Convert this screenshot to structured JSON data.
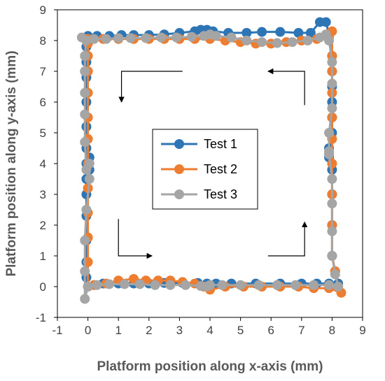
{
  "chart_data": {
    "type": "scatter",
    "title": "",
    "xlabel": "Platform position along x-axis (mm)",
    "ylabel": "Platform position along y-axis (mm)",
    "xlim": [
      -1,
      9
    ],
    "ylim": [
      -1,
      9
    ],
    "x_ticks": [
      "-1",
      "0",
      "1",
      "2",
      "3",
      "4",
      "5",
      "6",
      "7",
      "8",
      "9"
    ],
    "y_ticks": [
      "-1",
      "0",
      "1",
      "2",
      "3",
      "4",
      "5",
      "6",
      "7",
      "8",
      "9"
    ],
    "grid": false,
    "legend_position": "center",
    "series": [
      {
        "name": "Test 1",
        "color": "#2E75B6",
        "x": [
          0.0,
          0.3,
          0.7,
          1.1,
          1.5,
          2.0,
          2.5,
          3.0,
          3.5,
          3.7,
          3.9,
          4.1,
          4.6,
          5.2,
          5.7,
          6.3,
          6.9,
          7.3,
          7.6,
          7.8,
          7.9,
          8.0,
          8.0,
          8.0,
          8.0,
          8.0,
          8.0,
          7.9,
          7.9,
          7.9,
          8.0,
          8.0,
          8.0,
          8.0,
          8.1,
          8.2,
          7.9,
          7.5,
          7.0,
          6.3,
          5.5,
          4.7,
          4.2,
          3.9,
          3.6,
          3.1,
          2.5,
          2.0,
          1.5,
          1.0,
          0.5,
          0.2,
          0.0,
          -0.05,
          -0.05,
          -0.05,
          -0.05,
          -0.05,
          -0.05,
          -0.05,
          0.05,
          0.05,
          -0.05,
          -0.05,
          -0.05,
          -0.05,
          -0.05,
          -0.05,
          -0.05
        ],
        "y": [
          8.15,
          8.15,
          8.15,
          8.18,
          8.18,
          8.18,
          8.2,
          8.25,
          8.3,
          8.35,
          8.35,
          8.3,
          8.25,
          8.25,
          8.28,
          8.28,
          8.25,
          8.25,
          8.6,
          8.6,
          8.2,
          7.5,
          7.0,
          6.5,
          6.0,
          5.5,
          5.0,
          4.5,
          4.3,
          4.2,
          3.8,
          3.0,
          2.0,
          1.0,
          0.5,
          0.1,
          0.1,
          0.1,
          0.1,
          0.1,
          0.1,
          0.1,
          0.1,
          0.1,
          0.12,
          0.12,
          0.12,
          0.1,
          0.1,
          0.1,
          0.1,
          0.05,
          0.0,
          0.3,
          0.8,
          1.5,
          2.3,
          3.0,
          3.5,
          4.0,
          4.2,
          3.8,
          4.5,
          5.2,
          6.0,
          6.8,
          7.3,
          7.8,
          8.1
        ]
      },
      {
        "name": "Test 2",
        "color": "#ED7D31",
        "x": [
          0.0,
          0.5,
          1.0,
          1.5,
          2.0,
          2.5,
          3.0,
          3.5,
          4.0,
          4.5,
          5.0,
          5.5,
          6.0,
          6.5,
          7.0,
          7.5,
          7.9,
          8.0,
          8.0,
          8.0,
          8.0,
          8.0,
          8.0,
          8.0,
          8.0,
          8.0,
          8.0,
          8.1,
          8.2,
          8.3,
          7.9,
          7.4,
          6.9,
          6.3,
          5.7,
          5.1,
          4.5,
          4.0,
          3.8,
          3.5,
          3.1,
          2.7,
          2.3,
          1.9,
          1.5,
          1.0,
          0.6,
          0.2,
          0.0,
          0.0,
          0.0,
          0.0,
          0.0,
          0.0,
          0.0,
          0.0,
          0.0,
          0.0,
          0.0,
          0.0
        ],
        "y": [
          8.05,
          8.05,
          8.05,
          8.05,
          8.05,
          8.05,
          8.05,
          8.05,
          8.05,
          8.0,
          7.95,
          7.9,
          7.9,
          7.95,
          8.0,
          8.05,
          8.1,
          8.3,
          7.5,
          7.0,
          6.3,
          5.5,
          4.8,
          4.0,
          3.0,
          2.0,
          1.0,
          0.5,
          0.0,
          -0.2,
          -0.05,
          -0.05,
          0.0,
          0.0,
          0.0,
          0.0,
          0.0,
          -0.1,
          0.0,
          0.1,
          0.15,
          0.2,
          0.2,
          0.2,
          0.25,
          0.2,
          0.1,
          0.05,
          0.0,
          0.8,
          1.6,
          2.4,
          3.2,
          4.0,
          4.8,
          5.5,
          6.3,
          7.0,
          7.5,
          7.9
        ]
      },
      {
        "name": "Test 3",
        "color": "#A5A5A5",
        "x": [
          -0.2,
          0.2,
          0.6,
          1.0,
          1.4,
          1.9,
          2.4,
          2.9,
          3.4,
          3.8,
          4.0,
          4.2,
          4.7,
          5.2,
          5.7,
          6.2,
          6.7,
          7.2,
          7.6,
          7.8,
          7.9,
          8.0,
          8.0,
          8.0,
          7.9,
          7.9,
          7.9,
          8.0,
          8.0,
          8.0,
          8.0,
          8.1,
          8.2,
          7.9,
          7.4,
          6.8,
          6.2,
          5.6,
          5.0,
          4.4,
          4.0,
          3.9,
          3.7,
          3.2,
          2.7,
          2.2,
          1.7,
          1.2,
          0.7,
          0.3,
          0.0,
          -0.1,
          -0.1,
          -0.1,
          -0.05,
          0.05,
          0.05,
          -0.05,
          -0.1,
          -0.1,
          -0.1,
          -0.1,
          -0.1,
          -0.05
        ],
        "y": [
          8.1,
          8.05,
          8.05,
          8.08,
          8.08,
          8.08,
          8.1,
          8.1,
          8.12,
          8.15,
          8.2,
          8.15,
          8.1,
          8.0,
          7.95,
          7.92,
          7.95,
          8.0,
          8.1,
          8.2,
          8.0,
          7.3,
          6.6,
          5.8,
          5.0,
          4.4,
          4.3,
          3.5,
          2.7,
          1.8,
          1.0,
          0.4,
          0.0,
          0.05,
          0.05,
          0.05,
          0.05,
          0.05,
          0.05,
          0.05,
          0.05,
          0.0,
          0.02,
          0.05,
          0.05,
          0.05,
          0.08,
          0.08,
          0.08,
          0.05,
          0.0,
          -0.4,
          0.5,
          1.5,
          2.5,
          3.5,
          4.0,
          3.8,
          4.7,
          5.6,
          6.3,
          7.0,
          7.5,
          8.0
        ]
      }
    ],
    "annotations": [
      {
        "type": "arrow",
        "label": "",
        "from": [
          3.1,
          7.0
        ],
        "to": [
          1.1,
          7.0
        ],
        "then": [
          1.1,
          6.0
        ],
        "direction": "down-left"
      },
      {
        "type": "arrow",
        "label": "",
        "from": [
          1.0,
          2.2
        ],
        "to": [
          1.0,
          1.0
        ],
        "then": [
          2.1,
          1.0
        ],
        "direction": "right"
      },
      {
        "type": "arrow",
        "label": "",
        "from": [
          5.9,
          1.0
        ],
        "to": [
          7.1,
          1.0
        ],
        "then": [
          7.1,
          2.1
        ],
        "direction": "up"
      },
      {
        "type": "arrow",
        "label": "",
        "from": [
          7.1,
          5.9
        ],
        "to": [
          7.1,
          7.0
        ],
        "then": [
          5.9,
          7.0
        ],
        "direction": "left"
      }
    ]
  }
}
